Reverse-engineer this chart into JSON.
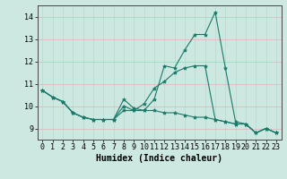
{
  "title": "",
  "xlabel": "Humidex (Indice chaleur)",
  "background_color": "#cce8e0",
  "grid_color": "#b8d8d0",
  "line_color": "#1a7a6a",
  "xlim": [
    -0.5,
    23.5
  ],
  "ylim": [
    8.5,
    14.5
  ],
  "yticks": [
    9,
    10,
    11,
    12,
    13,
    14
  ],
  "xticks": [
    0,
    1,
    2,
    3,
    4,
    5,
    6,
    7,
    8,
    9,
    10,
    11,
    12,
    13,
    14,
    15,
    16,
    17,
    18,
    19,
    20,
    21,
    22,
    23
  ],
  "series": [
    [
      10.7,
      10.4,
      10.2,
      9.7,
      9.5,
      9.4,
      9.4,
      9.4,
      10.3,
      9.9,
      9.8,
      10.3,
      11.8,
      11.7,
      12.5,
      13.2,
      13.2,
      14.2,
      11.7,
      9.3,
      9.2,
      8.8,
      9.0,
      8.8
    ],
    [
      10.7,
      10.4,
      10.2,
      9.7,
      9.5,
      9.4,
      9.4,
      9.4,
      9.8,
      9.8,
      9.8,
      9.8,
      9.7,
      9.7,
      9.6,
      9.5,
      9.5,
      9.4,
      9.3,
      9.2,
      9.2,
      8.8,
      9.0,
      8.8
    ],
    [
      10.7,
      10.4,
      10.2,
      9.7,
      9.5,
      9.4,
      9.4,
      9.4,
      10.0,
      9.8,
      10.1,
      10.8,
      11.1,
      11.5,
      11.7,
      11.8,
      11.8,
      9.4,
      9.3,
      9.2,
      9.2,
      8.8,
      9.0,
      8.8
    ]
  ],
  "xlabel_fontsize": 7,
  "tick_fontsize": 6,
  "marker_size": 3,
  "line_width": 0.8
}
